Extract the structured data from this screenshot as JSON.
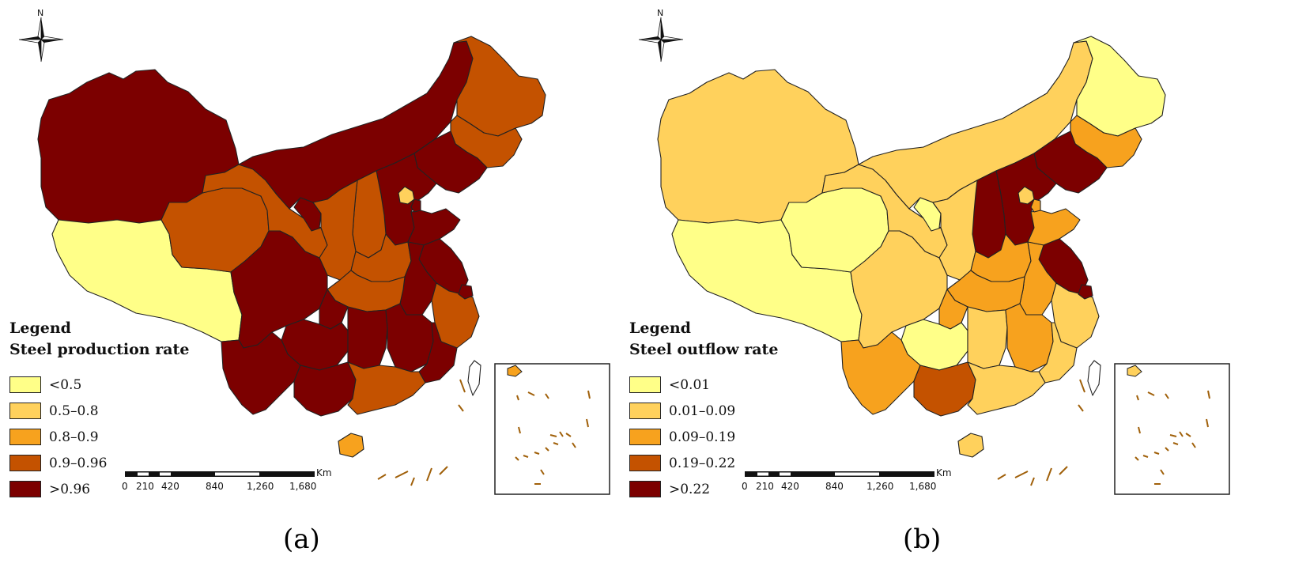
{
  "panels": [
    {
      "id": "a",
      "caption": "(a)",
      "north_label": "N",
      "legend": {
        "heading": "Legend",
        "title": "Steel production rate",
        "items": [
          {
            "label": "<0.5",
            "color": "#ffff88"
          },
          {
            "label": "0.5–0.8",
            "color": "#ffd15c"
          },
          {
            "label": "0.8–0.9",
            "color": "#f7a21e"
          },
          {
            "label": "0.9–0.96",
            "color": "#c45200"
          },
          {
            "label": ">0.96",
            "color": "#7c0000"
          }
        ]
      },
      "scale": {
        "unit": "Km",
        "ticks": [
          "0",
          "210",
          "420",
          "840",
          "1,260",
          "1,680"
        ]
      }
    },
    {
      "id": "b",
      "caption": "(b)",
      "north_label": "N",
      "legend": {
        "heading": "Legend",
        "title": "Steel outflow rate",
        "items": [
          {
            "label": "<0.01",
            "color": "#ffff88"
          },
          {
            "label": "0.01–0.09",
            "color": "#ffd15c"
          },
          {
            "label": "0.09–0.19",
            "color": "#f7a21e"
          },
          {
            "label": "0.19–0.22",
            "color": "#c45200"
          },
          {
            "label": ">0.22",
            "color": "#7c0000"
          }
        ]
      },
      "scale": {
        "unit": "Km",
        "ticks": [
          "0",
          "210",
          "420",
          "840",
          "1,260",
          "1,680"
        ]
      }
    }
  ],
  "colors": {
    "class1": "#ffff88",
    "class2": "#ffd15c",
    "class3": "#f7a21e",
    "class4": "#c45200",
    "class5": "#7c0000",
    "island": "#a0600a",
    "border": "#222222"
  }
}
